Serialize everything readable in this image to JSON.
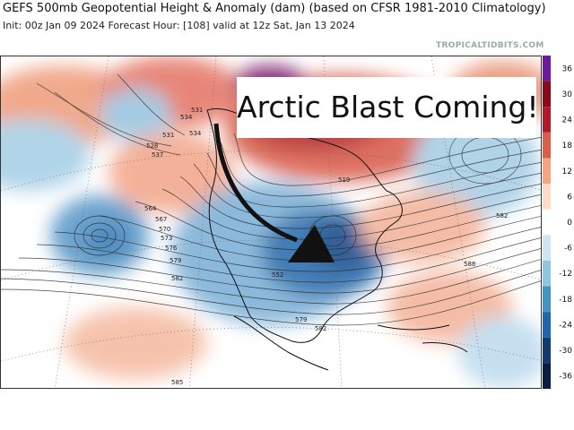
{
  "header": {
    "title": "GEFS 500mb Geopotential Height & Anomaly (dam) (based on CFSR 1981-2010 Climatology)",
    "subtitle": "Init: 00z Jan 09 2024   Forecast Hour: [108]   valid at 12z Sat, Jan 13 2024",
    "credit": "TROPICALTIDBITS.COM"
  },
  "callout": {
    "text": "Arctic Blast Coming!"
  },
  "colorbar": {
    "ticks": [
      "36",
      "30",
      "24",
      "18",
      "12",
      "6",
      "0",
      "-6",
      "-12",
      "-18",
      "-24",
      "-30",
      "-36"
    ],
    "colors": [
      "#6a1b9a",
      "#8b0a1a",
      "#b2182b",
      "#d6604d",
      "#f4a582",
      "#fddbc7",
      "#ffffff",
      "#d1e5f0",
      "#92c5de",
      "#4393c3",
      "#2166ac",
      "#133b6d",
      "#081d40"
    ]
  },
  "contour_labels": [
    "531",
    "534",
    "537",
    "528",
    "531",
    "534",
    "552",
    "519",
    "564",
    "567",
    "570",
    "573",
    "576",
    "579",
    "582",
    "585",
    "588",
    "582",
    "552",
    "579",
    "582"
  ]
}
